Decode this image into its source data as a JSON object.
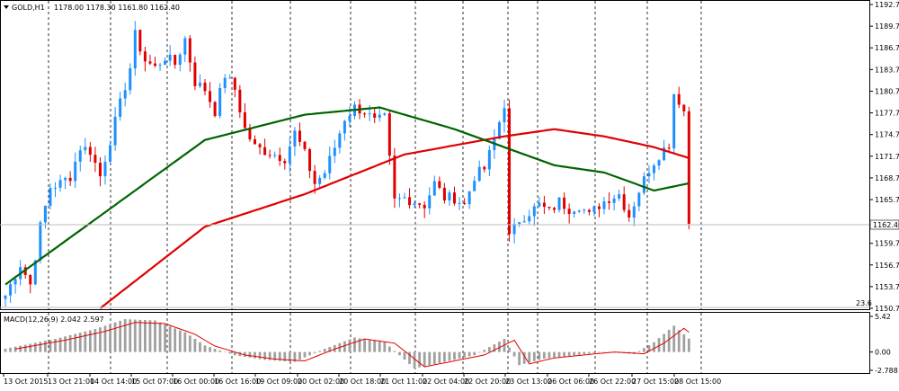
{
  "header": {
    "symbol_label": "GOLD,H1",
    "ohlc": "1178.00 1178.30 1161.80 1162.40"
  },
  "price_axis": {
    "ticks": [
      "1192.75",
      "1189.75",
      "1186.75",
      "1183.75",
      "1180.75",
      "1177.75",
      "1174.75",
      "1171.75",
      "1168.75",
      "1165.75",
      "1162.40",
      "1159.70",
      "1156.70",
      "1153.70",
      "1150.70"
    ],
    "current_price": "1162.40",
    "fib_label": "23.6"
  },
  "macd": {
    "label": "MACD(12,26,9) 2.042 2.597",
    "ticks": [
      "5.42",
      "0.00",
      "-2.788"
    ]
  },
  "time_axis": {
    "labels": [
      "13 Oct 2015",
      "13 Oct 21:00",
      "14 Oct 14:00",
      "15 Oct 07:00",
      "16 Oct 00:00",
      "16 Oct 16:00",
      "19 Oct 09:00",
      "20 Oct 02:00",
      "20 Oct 18:00",
      "21 Oct 11:00",
      "22 Oct 04:00",
      "22 Oct 20:00",
      "23 Oct 13:00",
      "26 Oct 06:00",
      "26 Oct 22:00",
      "27 Oct 15:00",
      "28 Oct 15:00"
    ]
  },
  "colors": {
    "bull": "#1e90ff",
    "bear": "#e00000",
    "ma_slow": "#e00000",
    "ma_fast": "#006400",
    "grid": "#000000"
  },
  "chart_data": {
    "type": "candlestick",
    "symbol": "GOLD",
    "timeframe": "H1",
    "ylim": [
      1150.7,
      1193.5
    ],
    "series_price_path": [
      [
        0,
        1152.5
      ],
      [
        3,
        1156.8
      ],
      [
        5,
        1154.0
      ],
      [
        7,
        1162.0
      ],
      [
        9,
        1167.5
      ],
      [
        11,
        1168.0
      ],
      [
        13,
        1169.0
      ],
      [
        15,
        1173.0
      ],
      [
        17,
        1172.5
      ],
      [
        19,
        1169.0
      ],
      [
        21,
        1174.0
      ],
      [
        23,
        1179.0
      ],
      [
        25,
        1184.0
      ],
      [
        26,
        1188.5
      ],
      [
        28,
        1185.0
      ],
      [
        30,
        1184.0
      ],
      [
        32,
        1185.5
      ],
      [
        34,
        1184.5
      ],
      [
        36,
        1188.0
      ],
      [
        38,
        1182.0
      ],
      [
        40,
        1181.0
      ],
      [
        42,
        1178.0
      ],
      [
        44,
        1183.0
      ],
      [
        46,
        1181.0
      ],
      [
        48,
        1175.5
      ],
      [
        50,
        1173.0
      ],
      [
        52,
        1172.5
      ],
      [
        54,
        1172.0
      ],
      [
        56,
        1171.5
      ],
      [
        58,
        1175.0
      ],
      [
        60,
        1172.0
      ],
      [
        62,
        1168.0
      ],
      [
        64,
        1169.5
      ],
      [
        66,
        1173.0
      ],
      [
        68,
        1177.0
      ],
      [
        70,
        1178.5
      ],
      [
        72,
        1178.0
      ],
      [
        74,
        1176.5
      ],
      [
        76,
        1177.0
      ],
      [
        78,
        1165.5
      ],
      [
        80,
        1166.0
      ],
      [
        82,
        1165.5
      ],
      [
        84,
        1165.0
      ],
      [
        86,
        1168.0
      ],
      [
        88,
        1166.0
      ],
      [
        90,
        1166.0
      ],
      [
        92,
        1165.0
      ],
      [
        94,
        1169.0
      ],
      [
        96,
        1170.0
      ],
      [
        98,
        1174.0
      ],
      [
        100,
        1179.0
      ],
      [
        101,
        1160.5
      ],
      [
        103,
        1163.0
      ],
      [
        105,
        1164.0
      ],
      [
        107,
        1165.0
      ],
      [
        109,
        1164.0
      ],
      [
        111,
        1165.5
      ],
      [
        113,
        1164.5
      ],
      [
        115,
        1165.0
      ],
      [
        117,
        1163.5
      ],
      [
        119,
        1165.0
      ],
      [
        121,
        1166.0
      ],
      [
        123,
        1166.5
      ],
      [
        125,
        1163.5
      ],
      [
        127,
        1167.0
      ],
      [
        129,
        1170.0
      ],
      [
        131,
        1172.0
      ],
      [
        133,
        1173.5
      ],
      [
        134,
        1180.5
      ],
      [
        135,
        1179.5
      ],
      [
        136,
        1178.0
      ],
      [
        137,
        1162.4
      ]
    ],
    "ma_slow_path": [
      [
        19,
        1150.7
      ],
      [
        40,
        1162.0
      ],
      [
        60,
        1166.5
      ],
      [
        80,
        1172.0
      ],
      [
        100,
        1174.5
      ],
      [
        110,
        1175.5
      ],
      [
        120,
        1174.5
      ],
      [
        130,
        1173.0
      ],
      [
        137,
        1171.5
      ]
    ],
    "ma_fast_path": [
      [
        0,
        1154.0
      ],
      [
        20,
        1164.0
      ],
      [
        40,
        1174.0
      ],
      [
        60,
        1177.5
      ],
      [
        75,
        1178.5
      ],
      [
        90,
        1175.5
      ],
      [
        100,
        1173.0
      ],
      [
        110,
        1170.5
      ],
      [
        120,
        1169.5
      ],
      [
        130,
        1167.0
      ],
      [
        137,
        1168.0
      ]
    ],
    "macd_ylim": [
      -2.788,
      5.42
    ]
  }
}
